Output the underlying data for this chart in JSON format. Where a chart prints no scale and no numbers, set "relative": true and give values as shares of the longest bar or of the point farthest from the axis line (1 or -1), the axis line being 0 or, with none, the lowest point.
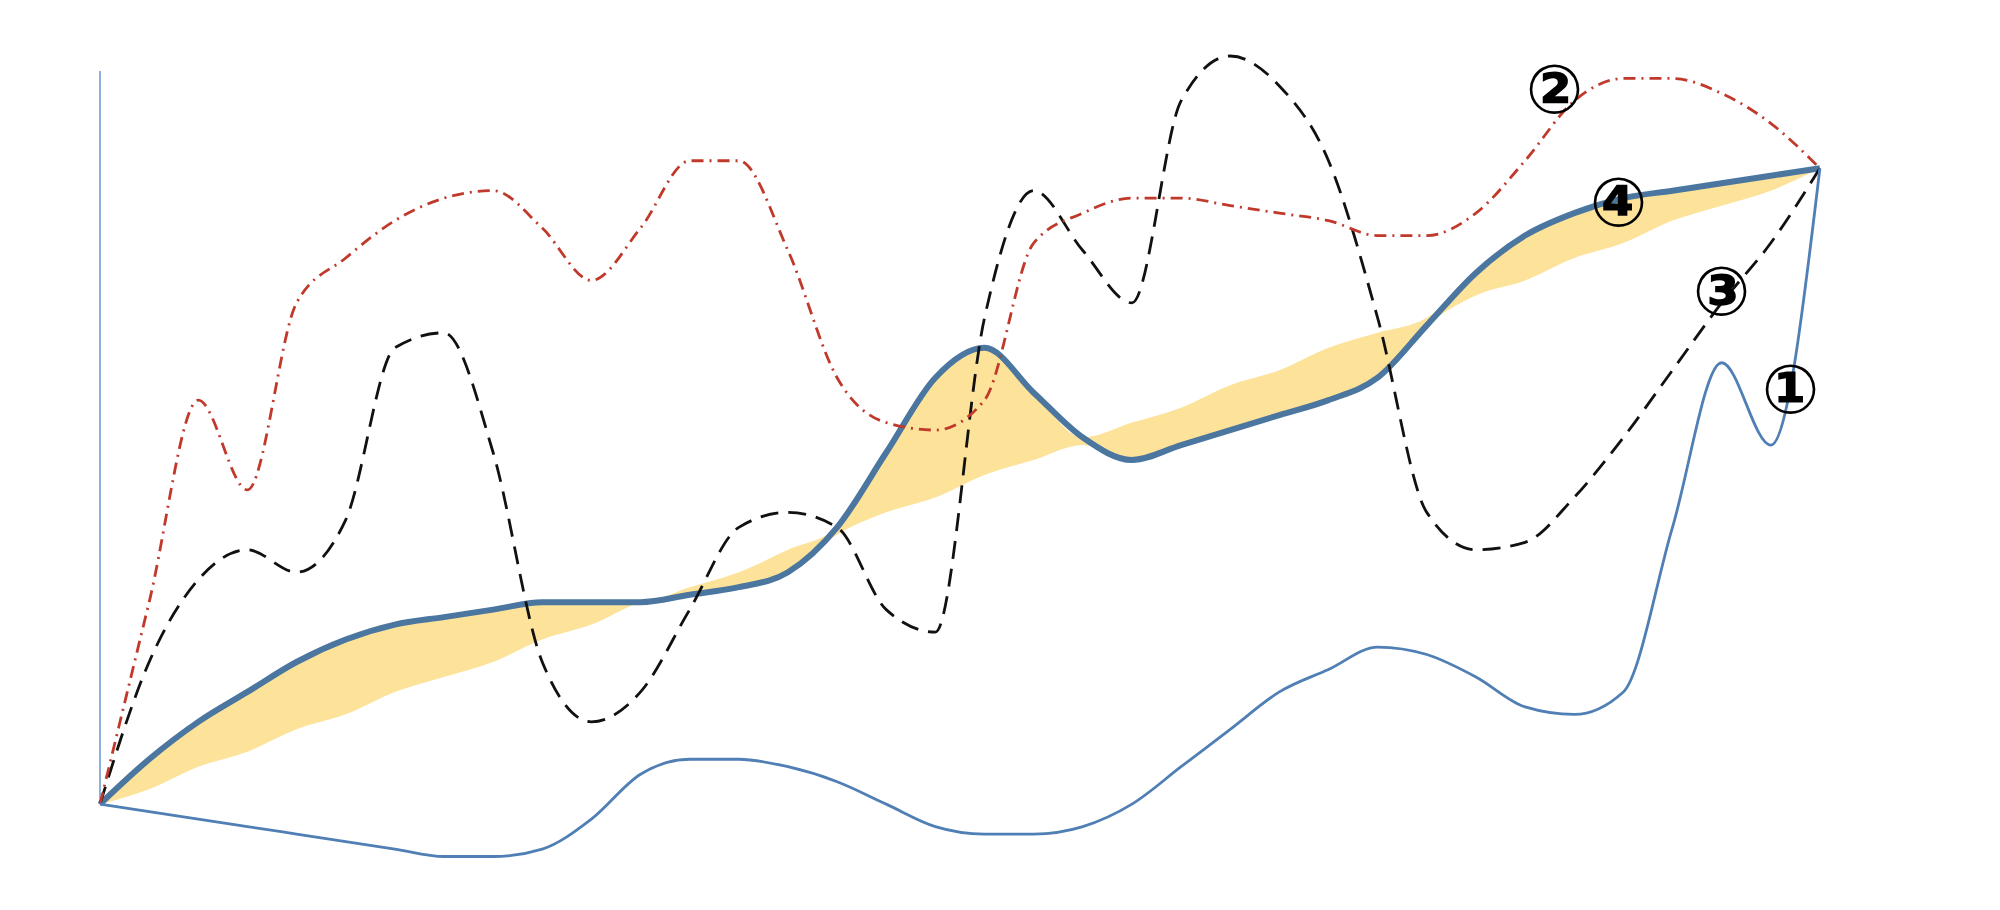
{
  "chart_data": {
    "type": "line",
    "relative": true,
    "categories": [
      null,
      null,
      null,
      null,
      null,
      null,
      null,
      null,
      null,
      null,
      null,
      null,
      null,
      null,
      null,
      null,
      null,
      null,
      null,
      null,
      null,
      null,
      null,
      null,
      null,
      null,
      null,
      null,
      null,
      null,
      null,
      null,
      null,
      null,
      null,
      null
    ],
    "series": [
      {
        "name": "①",
        "color": "#4f7fb4",
        "line_style": "solid",
        "values": [
          0,
          -0.01,
          -0.02,
          -0.03,
          -0.04,
          -0.05,
          -0.06,
          -0.07,
          -0.07,
          -0.06,
          -0.02,
          0.04,
          0.06,
          0.06,
          0.05,
          0.03,
          0,
          -0.03,
          -0.04,
          -0.04,
          -0.03,
          0,
          0.05,
          0.1,
          0.15,
          0.18,
          0.21,
          0.2,
          0.17,
          0.13,
          0.12,
          0.15,
          0.37,
          0.59,
          0.48,
          0.85
        ]
      },
      {
        "name": "②",
        "color": "#c0392b",
        "line_style": "dotted",
        "values": [
          0,
          0.27,
          0.54,
          0.42,
          0.67,
          0.73,
          0.78,
          0.81,
          0.82,
          0.77,
          0.7,
          0.77,
          0.86,
          0.86,
          0.74,
          0.57,
          0.51,
          0.5,
          0.54,
          0.75,
          0.79,
          0.81,
          0.81,
          0.8,
          0.79,
          0.78,
          0.76,
          0.76,
          0.79,
          0.86,
          0.94,
          0.97,
          0.97,
          0.95,
          0.91,
          0.85
        ]
      },
      {
        "name": "③",
        "color": "#111111",
        "line_style": "dashed",
        "values": [
          0,
          0.19,
          0.3,
          0.34,
          0.31,
          0.38,
          0.61,
          0.63,
          0.47,
          0.19,
          0.11,
          0.15,
          0.26,
          0.37,
          0.39,
          0.37,
          0.26,
          0.23,
          0.65,
          0.82,
          0.74,
          0.67,
          0.94,
          1,
          0.96,
          0.86,
          0.65,
          0.39,
          0.34,
          0.35,
          0.41,
          0.49,
          0.58,
          0.67,
          0.75,
          0.85
        ]
      },
      {
        "name": "④",
        "color": "#4a76a0",
        "line_style": "solid",
        "values": [
          0,
          0.06,
          0.11,
          0.15,
          0.19,
          0.22,
          0.24,
          0.25,
          0.26,
          0.27,
          0.27,
          0.27,
          0.28,
          0.29,
          0.31,
          0.37,
          0.47,
          0.57,
          0.61,
          0.55,
          0.49,
          0.46,
          0.48,
          0.5,
          0.52,
          0.54,
          0.57,
          0.64,
          0.71,
          0.76,
          0.79,
          0.81,
          0.82,
          0.83,
          0.84,
          0.85
        ],
        "lower": [
          0,
          0.02,
          0.05,
          0.07,
          0.1,
          0.12,
          0.15,
          0.17,
          0.19,
          0.22,
          0.24,
          0.27,
          0.28,
          0.29,
          0.31,
          0.36,
          0.39,
          0.41,
          0.44,
          0.46,
          0.48,
          0.46,
          0.48,
          0.5,
          0.52,
          0.54,
          0.57,
          0.64,
          0.68,
          0.7,
          0.73,
          0.75,
          0.78,
          0.8,
          0.82,
          0.85
        ],
        "upper": [
          0,
          0.06,
          0.11,
          0.15,
          0.19,
          0.22,
          0.24,
          0.25,
          0.26,
          0.27,
          0.27,
          0.27,
          0.29,
          0.31,
          0.34,
          0.37,
          0.47,
          0.57,
          0.61,
          0.55,
          0.49,
          0.51,
          0.53,
          0.56,
          0.58,
          0.61,
          0.63,
          0.65,
          0.71,
          0.76,
          0.79,
          0.81,
          0.82,
          0.83,
          0.84,
          0.85
        ]
      }
    ],
    "marker": "none"
  }
}
